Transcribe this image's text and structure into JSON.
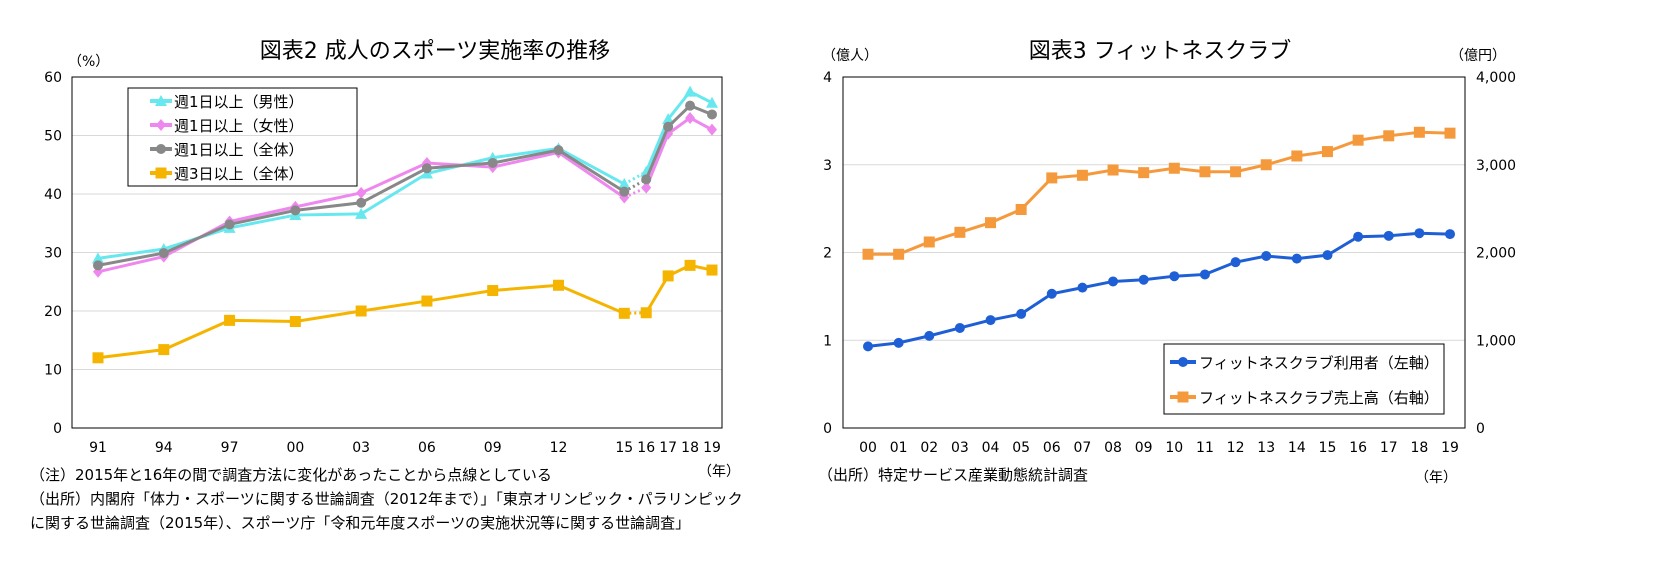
{
  "chart_data": [
    {
      "type": "line",
      "title": "図表2 成人のスポーツ実施率の推移",
      "ylabel": "（%）",
      "xlabel": "（年）",
      "ylim": [
        0,
        60
      ],
      "yticks": [
        0,
        10,
        20,
        30,
        40,
        50,
        60
      ],
      "grid": true,
      "legend": "top-left",
      "x": [
        1991,
        1994,
        1997,
        2000,
        2003,
        2006,
        2009,
        2012,
        2015,
        2016,
        2017,
        2018,
        2019
      ],
      "categories": [
        "91",
        "94",
        "97",
        "00",
        "03",
        "06",
        "09",
        "12",
        "15",
        "16",
        "17",
        "18",
        "19"
      ],
      "dotted_between": [
        "15",
        "16"
      ],
      "series": [
        {
          "name": "週1日以上（男性）",
          "color": "#66e8ee",
          "marker": "triangle",
          "values": [
            29.0,
            30.6,
            34.2,
            36.4,
            36.6,
            43.5,
            46.2,
            47.8,
            41.7,
            43.8,
            52.8,
            57.5,
            55.6
          ]
        },
        {
          "name": "週1日以上（女性）",
          "color": "#ee88ee",
          "marker": "diamond",
          "values": [
            26.7,
            29.3,
            35.3,
            37.8,
            40.2,
            45.3,
            44.6,
            47.1,
            39.4,
            41.1,
            50.3,
            53.0,
            51.0
          ]
        },
        {
          "name": "週1日以上（全体）",
          "color": "#888888",
          "marker": "circle",
          "values": [
            27.8,
            29.9,
            34.8,
            37.2,
            38.5,
            44.4,
            45.3,
            47.5,
            40.4,
            42.5,
            51.5,
            55.1,
            53.6
          ]
        },
        {
          "name": "週3日以上（全体）",
          "color": "#f5b400",
          "marker": "square",
          "values": [
            12.0,
            13.4,
            18.4,
            18.2,
            20.0,
            21.7,
            23.5,
            24.4,
            19.6,
            19.7,
            26.0,
            27.8,
            27.0
          ]
        }
      ],
      "notes": [
        "（注）2015年と16年の間で調査方法に変化があったことから点線としている",
        "（出所）内閣府「体力・スポーツに関する世論調査（2012年まで）」「東京オリンピック・パラリンピック",
        "に関する世論調査（2015年）、スポーツ庁「令和元年度スポーツの実施状況等に関する世論調査」"
      ]
    },
    {
      "type": "line",
      "title": "図表3 フィットネスクラブ",
      "ylabel": "（億人）",
      "y2label": "（億円）",
      "xlabel": "（年）",
      "ylim": [
        0,
        4
      ],
      "yticks": [
        "0",
        "1",
        "2",
        "3",
        "4"
      ],
      "y2lim": [
        0,
        4000
      ],
      "y2ticks": [
        "0",
        "1,000",
        "2,000",
        "3,000",
        "4,000"
      ],
      "grid": true,
      "legend": "bottom-right",
      "categories": [
        "00",
        "01",
        "02",
        "03",
        "04",
        "05",
        "06",
        "07",
        "08",
        "09",
        "10",
        "11",
        "12",
        "13",
        "14",
        "15",
        "16",
        "17",
        "18",
        "19"
      ],
      "series": [
        {
          "name": "フィットネスクラブ利用者（左軸）",
          "axis": "left",
          "color": "#1f5fd6",
          "marker": "circle",
          "values": [
            0.93,
            0.97,
            1.05,
            1.14,
            1.23,
            1.3,
            1.53,
            1.6,
            1.67,
            1.69,
            1.73,
            1.75,
            1.89,
            1.96,
            1.93,
            1.97,
            2.18,
            2.19,
            2.22,
            2.21
          ]
        },
        {
          "name": "フィットネスクラブ売上高（右軸）",
          "axis": "right",
          "color": "#f59a3c",
          "marker": "square",
          "values": [
            1980,
            1980,
            2120,
            2230,
            2340,
            2490,
            2850,
            2880,
            2940,
            2910,
            2960,
            2920,
            2920,
            3000,
            3100,
            3150,
            3280,
            3330,
            3370,
            3360
          ]
        }
      ],
      "notes": [
        "（出所）特定サービス産業動態統計調査"
      ]
    }
  ]
}
